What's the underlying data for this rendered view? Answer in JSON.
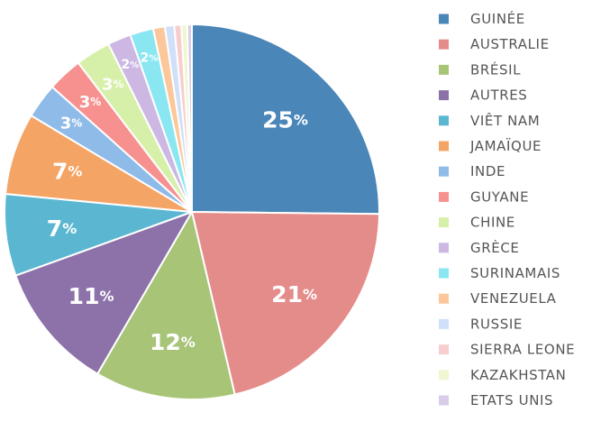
{
  "chart_data": {
    "type": "pie",
    "legend_position": "right",
    "slices": [
      {
        "label": "GUINÉE",
        "value": 25,
        "display": "25",
        "unit": "%",
        "color": "#4a86b8"
      },
      {
        "label": "AUSTRALIE",
        "value": 21,
        "display": "21",
        "unit": "%",
        "color": "#e48c8a"
      },
      {
        "label": "BRÉSIL",
        "value": 12,
        "display": "12",
        "unit": "%",
        "color": "#a7c477"
      },
      {
        "label": "AUTRES",
        "value": 11,
        "display": "11",
        "unit": "%",
        "color": "#8d72a9"
      },
      {
        "label": "VIÊT NAM",
        "value": 7,
        "display": "7",
        "unit": "%",
        "color": "#5bb7d1"
      },
      {
        "label": "JAMAÏQUE",
        "value": 7,
        "display": "7",
        "unit": "%",
        "color": "#f4a465"
      },
      {
        "label": "INDE",
        "value": 3,
        "display": "3",
        "unit": "%",
        "color": "#8fbbe8"
      },
      {
        "label": "GUYANE",
        "value": 3,
        "display": "3",
        "unit": "%",
        "color": "#f69190"
      },
      {
        "label": "CHINE",
        "value": 3,
        "display": "3",
        "unit": "%",
        "color": "#d7f0a9"
      },
      {
        "label": "GRÈCE",
        "value": 2,
        "display": "2",
        "unit": "%",
        "color": "#ccb8e3"
      },
      {
        "label": "SURINAMAIS",
        "value": 2,
        "display": "2",
        "unit": "%",
        "color": "#8ae7f2"
      },
      {
        "label": "VENEZUELA",
        "value": 1,
        "display": "",
        "unit": "",
        "color": "#fcc79a"
      },
      {
        "label": "RUSSIE",
        "value": 0.8,
        "display": "",
        "unit": "",
        "color": "#cfe0f8"
      },
      {
        "label": "SIERRA LEONE",
        "value": 0.6,
        "display": "",
        "unit": "",
        "color": "#f8cdcd"
      },
      {
        "label": "KAZAKHSTAN",
        "value": 0.5,
        "display": "",
        "unit": "",
        "color": "#eef7cf"
      },
      {
        "label": "ETATS UNIS",
        "value": 0.4,
        "display": "",
        "unit": "",
        "color": "#d8cce8"
      }
    ]
  }
}
